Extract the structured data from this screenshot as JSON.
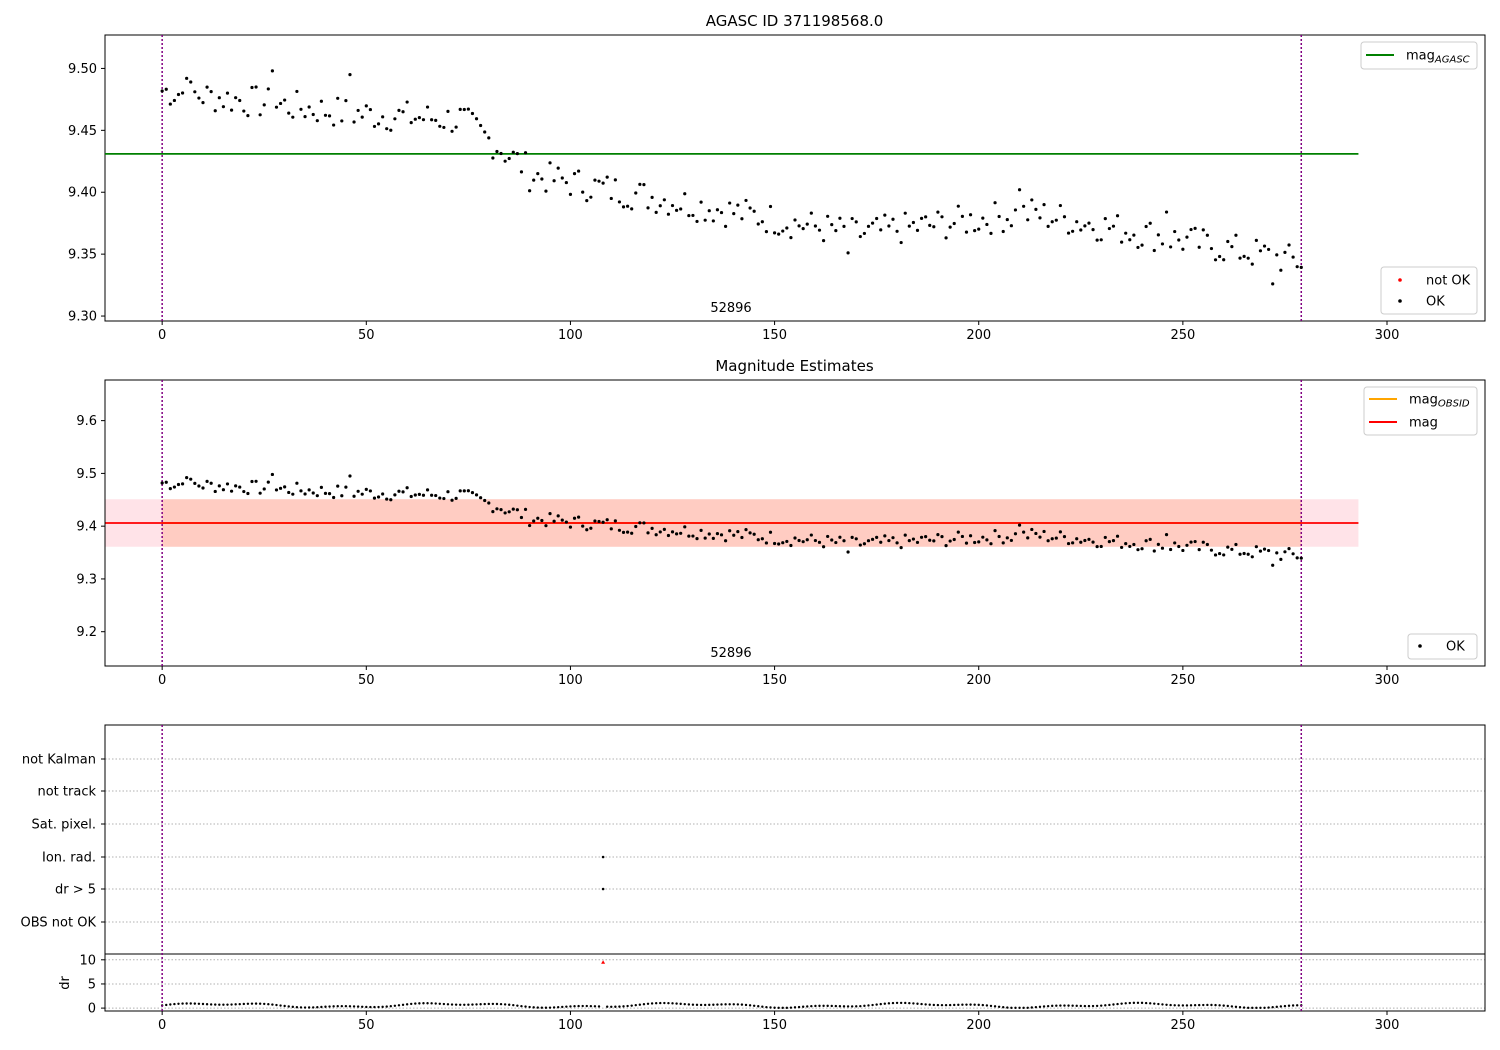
{
  "chart_data": [
    {
      "type": "scatter",
      "title": "AGASC ID 371198568.0",
      "annotation": "52896",
      "xlim": [
        -14,
        324
      ],
      "ylim": [
        9.296,
        9.527
      ],
      "xticks": [
        0,
        50,
        100,
        150,
        200,
        250,
        300
      ],
      "yticks": [
        9.3,
        9.35,
        9.4,
        9.45,
        9.5
      ],
      "ytick_labels": [
        "9.30",
        "9.35",
        "9.40",
        "9.45",
        "9.50"
      ],
      "vlines": [
        0,
        279
      ],
      "hline": {
        "name": "mag_AGASC",
        "value": 9.431,
        "x_range": [
          -14,
          293
        ],
        "color": "#008000"
      },
      "legend_upper": [
        {
          "label": "mag",
          "sub": "AGASC",
          "color": "#008000"
        }
      ],
      "legend_lower": [
        {
          "label": "not OK",
          "color": "#ff0000"
        },
        {
          "label": "OK",
          "color": "#000000"
        }
      ],
      "grid": false,
      "series": [
        {
          "name": "OK",
          "color": "#000000",
          "points": "shared_magnitudes"
        }
      ]
    },
    {
      "type": "scatter",
      "title": "Magnitude Estimates",
      "annotation": "52896",
      "xlim": [
        -14,
        324
      ],
      "ylim": [
        9.135,
        9.677
      ],
      "xticks": [
        0,
        50,
        100,
        150,
        200,
        250,
        300
      ],
      "yticks": [
        9.2,
        9.3,
        9.4,
        9.5,
        9.6
      ],
      "ytick_labels": [
        "9.2",
        "9.3",
        "9.4",
        "9.5",
        "9.6"
      ],
      "vlines": [
        0,
        279
      ],
      "mag_obsid": {
        "value": 9.406,
        "band": [
          9.361,
          9.451
        ],
        "x_range": [
          -14,
          293
        ],
        "color": "#ffa500"
      },
      "mag": {
        "value": 9.406,
        "band": [
          9.361,
          9.451
        ],
        "x_range": [
          -14,
          293
        ],
        "color": "#ff0000"
      },
      "legend_upper": [
        {
          "label": "mag",
          "sub": "OBSID",
          "color": "#ffa500"
        },
        {
          "label": "mag",
          "sub": "",
          "color": "#ff0000"
        }
      ],
      "legend_lower": [
        {
          "label": "OK",
          "color": "#000000"
        }
      ],
      "grid": false,
      "series": [
        {
          "name": "OK",
          "color": "#000000",
          "points": "shared_magnitudes"
        }
      ]
    },
    {
      "type": "scatter",
      "title": "",
      "xlim": [
        -14,
        324
      ],
      "xticks": [
        0,
        50,
        100,
        150,
        200,
        250,
        300
      ],
      "vlines": [
        0,
        279
      ],
      "flag_rows": [
        "not Kalman",
        "not track",
        "Sat. pixel.",
        "Ion. rad.",
        "dr > 5",
        "OBS not OK"
      ],
      "flag_points": [
        {
          "row": "Ion. rad.",
          "x": 108
        },
        {
          "row": "dr > 5",
          "x": 108
        }
      ],
      "dr": {
        "ylabel": "dr",
        "ylim": [
          -0.6,
          11.2
        ],
        "yticks": [
          0,
          5,
          10
        ],
        "ytick_labels": [
          "0",
          "5",
          "10"
        ],
        "outliers": [
          {
            "x": 108,
            "y": 9.5,
            "color": "#ff0000"
          }
        ]
      }
    }
  ],
  "ui": {
    "annotation_text": "52896",
    "dr_label": "dr"
  }
}
